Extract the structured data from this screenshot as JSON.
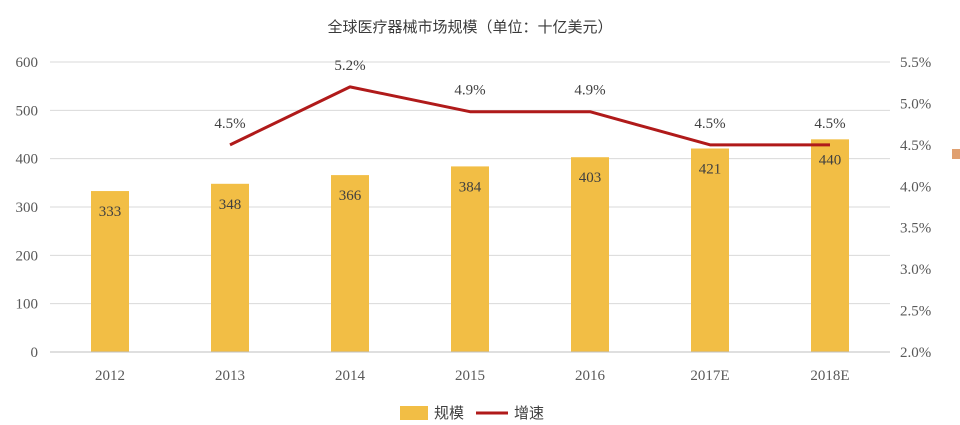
{
  "colors": {
    "bar": "#F2BE45",
    "line": "#B01A1A",
    "grid": "#D9D9D9",
    "axis_text": "#595959",
    "edge_marker": "#E0A070"
  },
  "chart_data": {
    "type": "bar",
    "title": "全球医疗器械市场规模（单位：十亿美元）",
    "categories": [
      "2012",
      "2013",
      "2014",
      "2015",
      "2016",
      "2017E",
      "2018E"
    ],
    "series": [
      {
        "name": "规模",
        "type": "bar",
        "axis": "left",
        "values": [
          333,
          348,
          366,
          384,
          403,
          421,
          440
        ],
        "labels": [
          "333",
          "348",
          "366",
          "384",
          "403",
          "421",
          "440"
        ]
      },
      {
        "name": "增速",
        "type": "line",
        "axis": "right",
        "values": [
          null,
          4.5,
          5.2,
          4.9,
          4.9,
          4.5,
          4.5
        ],
        "labels": [
          "",
          "4.5%",
          "5.2%",
          "4.9%",
          "4.9%",
          "4.5%",
          "4.5%"
        ]
      }
    ],
    "y_left": {
      "range": [
        0,
        600
      ],
      "ticks": [
        0,
        100,
        200,
        300,
        400,
        500,
        600
      ],
      "tick_labels": [
        "0",
        "100",
        "200",
        "300",
        "400",
        "500",
        "600"
      ]
    },
    "y_right": {
      "range": [
        2.0,
        5.5
      ],
      "ticks": [
        2.0,
        2.5,
        3.0,
        3.5,
        4.0,
        4.5,
        5.0,
        5.5
      ],
      "tick_labels": [
        "2.0%",
        "2.5%",
        "3.0%",
        "3.5%",
        "4.0%",
        "4.5%",
        "5.0%",
        "5.5%"
      ]
    },
    "grid": true,
    "legend": {
      "position": "bottom",
      "entries": [
        "规模",
        "增速"
      ]
    }
  }
}
